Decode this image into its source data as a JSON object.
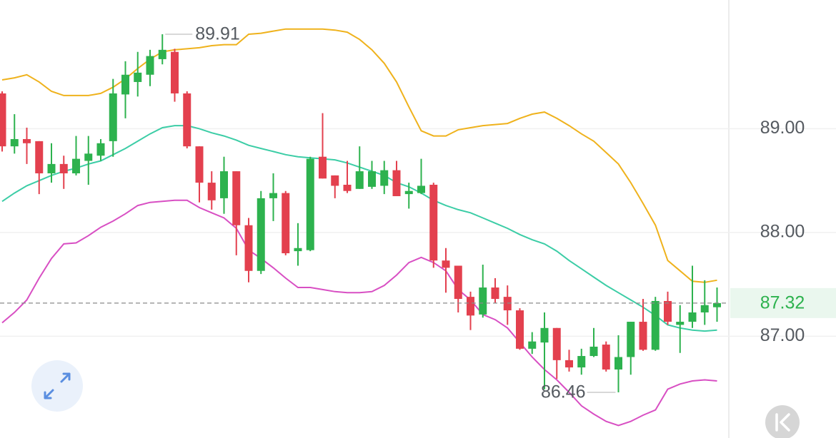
{
  "chart_data": {
    "type": "candlestick",
    "up_color": "#2db24e",
    "down_color": "#e3404e",
    "open": [
      89.34,
      88.83,
      88.9,
      88.88,
      88.57,
      88.66,
      88.57,
      88.69,
      88.74,
      88.88,
      89.33,
      89.45,
      89.52,
      89.67,
      89.74,
      89.34,
      88.83,
      88.48,
      88.33,
      88.59,
      88.07,
      87.63,
      88.33,
      88.38,
      87.82,
      87.83,
      88.73,
      88.55,
      88.46,
      88.42,
      88.44,
      88.45,
      88.6,
      88.37,
      88.38,
      88.46,
      87.73,
      87.68,
      87.38,
      87.21,
      87.47,
      87.38,
      87.25,
      86.88,
      86.94,
      87.08,
      86.77,
      86.7,
      86.81,
      86.92,
      86.68,
      86.8,
      87.14,
      86.87,
      87.34,
      87.11,
      87.14,
      87.23,
      87.28
    ],
    "high": [
      89.36,
      89.14,
      89.01,
      88.88,
      88.86,
      88.74,
      88.93,
      88.93,
      88.9,
      89.48,
      89.65,
      89.74,
      89.76,
      89.91,
      89.77,
      89.36,
      88.83,
      88.59,
      88.73,
      88.59,
      88.14,
      88.4,
      88.57,
      88.4,
      88.09,
      88.73,
      89.15,
      88.55,
      88.69,
      88.83,
      88.69,
      88.69,
      88.69,
      88.48,
      88.71,
      88.48,
      87.85,
      87.68,
      87.43,
      87.69,
      87.56,
      87.49,
      87.27,
      87.04,
      87.23,
      87.08,
      86.87,
      86.88,
      87.08,
      86.95,
      87.01,
      87.14,
      87.36,
      87.38,
      87.43,
      87.3,
      87.68,
      87.54,
      87.47
    ],
    "low": [
      88.78,
      88.76,
      88.66,
      88.37,
      88.48,
      88.42,
      88.55,
      88.46,
      88.69,
      88.73,
      89.1,
      89.31,
      89.41,
      89.62,
      89.26,
      88.81,
      88.29,
      88.22,
      88.18,
      87.78,
      87.52,
      87.6,
      88.11,
      87.78,
      87.68,
      87.82,
      88.52,
      88.33,
      88.38,
      88.42,
      88.42,
      88.37,
      88.35,
      88.23,
      88.37,
      87.66,
      87.42,
      87.23,
      87.06,
      87.18,
      87.32,
      87.11,
      86.87,
      86.83,
      86.49,
      86.59,
      86.66,
      86.63,
      86.8,
      86.66,
      86.46,
      86.63,
      86.86,
      86.86,
      87.11,
      86.84,
      87.08,
      87.11,
      87.14
    ],
    "close": [
      88.83,
      88.9,
      88.86,
      88.57,
      88.66,
      88.57,
      88.71,
      88.76,
      88.86,
      89.34,
      89.52,
      89.54,
      89.7,
      89.76,
      89.34,
      88.83,
      88.48,
      88.31,
      88.59,
      88.07,
      87.63,
      88.33,
      88.38,
      87.8,
      87.85,
      88.71,
      88.52,
      88.45,
      88.4,
      88.59,
      88.59,
      88.6,
      88.35,
      88.4,
      88.45,
      87.73,
      87.66,
      87.36,
      87.2,
      87.47,
      87.36,
      87.25,
      86.88,
      86.95,
      87.08,
      86.77,
      86.7,
      86.81,
      86.9,
      86.68,
      86.8,
      87.14,
      86.87,
      87.34,
      87.14,
      87.14,
      87.23,
      87.3,
      87.32
    ],
    "bands": [
      {
        "color": "#efb21c",
        "values": [
          89.47,
          89.49,
          89.52,
          89.45,
          89.36,
          89.32,
          89.32,
          89.32,
          89.34,
          89.4,
          89.48,
          89.58,
          89.67,
          89.74,
          89.76,
          89.77,
          89.78,
          89.8,
          89.81,
          89.81,
          89.91,
          89.92,
          89.94,
          89.96,
          89.96,
          89.96,
          89.96,
          89.95,
          89.93,
          89.86,
          89.76,
          89.63,
          89.45,
          89.21,
          88.98,
          88.93,
          88.93,
          88.99,
          89.01,
          89.03,
          89.04,
          89.05,
          89.1,
          89.14,
          89.16,
          89.1,
          89.03,
          88.95,
          88.88,
          88.77,
          88.66,
          88.48,
          88.28,
          88.07,
          87.73,
          87.63,
          87.53,
          87.52,
          87.54
        ]
      },
      {
        "color": "#3ccda6",
        "values": [
          88.3,
          88.38,
          88.45,
          88.5,
          88.55,
          88.59,
          88.62,
          88.66,
          88.69,
          88.75,
          88.81,
          88.88,
          88.95,
          89.01,
          89.03,
          89.03,
          89.0,
          88.96,
          88.93,
          88.89,
          88.84,
          88.81,
          88.78,
          88.75,
          88.73,
          88.72,
          88.71,
          88.7,
          88.67,
          88.63,
          88.59,
          88.55,
          88.48,
          88.44,
          88.38,
          88.31,
          88.26,
          88.22,
          88.19,
          88.14,
          88.09,
          88.04,
          87.98,
          87.93,
          87.89,
          87.82,
          87.73,
          87.65,
          87.57,
          87.49,
          87.42,
          87.35,
          87.28,
          87.2,
          87.11,
          87.08,
          87.06,
          87.05,
          87.06
        ]
      },
      {
        "color": "#d84fc3",
        "values": [
          87.13,
          87.23,
          87.35,
          87.56,
          87.75,
          87.89,
          87.9,
          87.97,
          88.05,
          88.11,
          88.18,
          88.26,
          88.29,
          88.3,
          88.31,
          88.31,
          88.24,
          88.19,
          88.14,
          88.04,
          87.83,
          87.75,
          87.66,
          87.56,
          87.47,
          87.47,
          87.45,
          87.43,
          87.42,
          87.42,
          87.43,
          87.49,
          87.59,
          87.71,
          87.76,
          87.71,
          87.63,
          87.45,
          87.35,
          87.21,
          87.16,
          87.08,
          86.94,
          86.8,
          86.68,
          86.58,
          86.46,
          86.33,
          86.25,
          86.18,
          86.14,
          86.18,
          86.24,
          86.29,
          86.49,
          86.54,
          86.57,
          86.58,
          86.57
        ]
      }
    ],
    "ylim": [
      86.02,
      90.24
    ],
    "yticks": [
      {
        "value": 89,
        "label": "89.00"
      },
      {
        "value": 88,
        "label": "88.00"
      },
      {
        "value": 87,
        "label": "87.00"
      }
    ],
    "grid": true,
    "last_price": 87.32,
    "last_price_color": "#2db24e",
    "max_marker": 89.91,
    "min_marker": 86.46
  }
}
